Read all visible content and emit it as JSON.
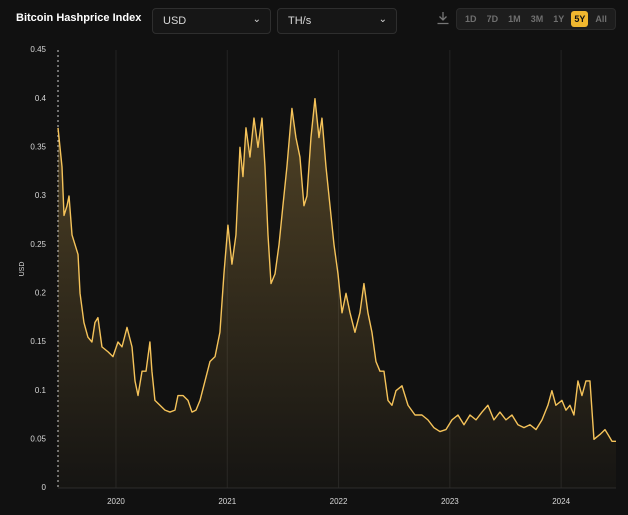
{
  "header": {
    "currency": "USD",
    "unit": "TH/s",
    "ranges": [
      "1D",
      "7D",
      "1M",
      "3M",
      "1Y",
      "5Y",
      "All"
    ],
    "active_range": 5
  },
  "chart_data": {
    "type": "line",
    "title": "Bitcoin Hashprice Index",
    "y_label": "USD",
    "x": [
      2019.479,
      2019.515,
      2019.533,
      2019.56,
      2019.578,
      2019.605,
      2019.632,
      2019.659,
      2019.677,
      2019.712,
      2019.748,
      2019.784,
      2019.811,
      2019.838,
      2019.874,
      2019.928,
      2019.973,
      2020.018,
      2020.054,
      2020.099,
      2020.144,
      2020.171,
      2020.198,
      2020.234,
      2020.27,
      2020.305,
      2020.323,
      2020.35,
      2020.395,
      2020.44,
      2020.485,
      2020.53,
      2020.557,
      2020.602,
      2020.647,
      2020.683,
      2020.719,
      2020.755,
      2020.8,
      2020.845,
      2020.89,
      2020.934,
      2020.97,
      2021.006,
      2021.042,
      2021.078,
      2021.114,
      2021.141,
      2021.168,
      2021.204,
      2021.24,
      2021.276,
      2021.312,
      2021.339,
      2021.366,
      2021.393,
      2021.429,
      2021.465,
      2021.5,
      2021.536,
      2021.581,
      2021.617,
      2021.653,
      2021.689,
      2021.716,
      2021.752,
      2021.788,
      2021.824,
      2021.851,
      2021.887,
      2021.923,
      2021.959,
      2021.995,
      2022.031,
      2022.067,
      2022.103,
      2022.147,
      2022.192,
      2022.228,
      2022.264,
      2022.3,
      2022.336,
      2022.372,
      2022.408,
      2022.444,
      2022.48,
      2022.516,
      2022.57,
      2022.624,
      2022.687,
      2022.749,
      2022.803,
      2022.857,
      2022.911,
      2022.965,
      2023.019,
      2023.073,
      2023.127,
      2023.181,
      2023.235,
      2023.289,
      2023.342,
      2023.396,
      2023.45,
      2023.504,
      2023.558,
      2023.612,
      2023.666,
      2023.72,
      2023.774,
      2023.828,
      2023.881,
      2023.917,
      2023.953,
      2024.007,
      2024.043,
      2024.079,
      2024.115,
      2024.151,
      2024.187,
      2024.223,
      2024.259,
      2024.295,
      2024.349,
      2024.394,
      2024.421,
      2024.457,
      2024.493
    ],
    "series": [
      {
        "name": "Hashprice",
        "color": "#f5c35a",
        "values": [
          0.37,
          0.33,
          0.28,
          0.29,
          0.3,
          0.26,
          0.25,
          0.24,
          0.2,
          0.17,
          0.155,
          0.15,
          0.17,
          0.175,
          0.145,
          0.14,
          0.135,
          0.15,
          0.145,
          0.165,
          0.145,
          0.11,
          0.095,
          0.12,
          0.12,
          0.15,
          0.12,
          0.09,
          0.085,
          0.08,
          0.078,
          0.08,
          0.095,
          0.095,
          0.09,
          0.078,
          0.08,
          0.09,
          0.11,
          0.13,
          0.135,
          0.16,
          0.22,
          0.27,
          0.23,
          0.26,
          0.35,
          0.32,
          0.37,
          0.34,
          0.38,
          0.35,
          0.38,
          0.33,
          0.26,
          0.21,
          0.22,
          0.25,
          0.29,
          0.33,
          0.39,
          0.36,
          0.34,
          0.29,
          0.3,
          0.36,
          0.4,
          0.36,
          0.38,
          0.33,
          0.29,
          0.25,
          0.22,
          0.18,
          0.2,
          0.18,
          0.16,
          0.18,
          0.21,
          0.18,
          0.16,
          0.13,
          0.12,
          0.12,
          0.09,
          0.085,
          0.1,
          0.105,
          0.085,
          0.075,
          0.075,
          0.07,
          0.062,
          0.058,
          0.06,
          0.07,
          0.075,
          0.065,
          0.075,
          0.07,
          0.078,
          0.085,
          0.07,
          0.078,
          0.07,
          0.075,
          0.065,
          0.062,
          0.065,
          0.06,
          0.07,
          0.085,
          0.1,
          0.085,
          0.09,
          0.08,
          0.085,
          0.075,
          0.11,
          0.095,
          0.11,
          0.11,
          0.05,
          0.055,
          0.06,
          0.055,
          0.048,
          0.048
        ]
      }
    ],
    "xlim": [
      2019.479,
      2024.493
    ],
    "xticks": [
      2020,
      2021,
      2022,
      2023,
      2024
    ],
    "ylim": [
      0,
      0.45
    ],
    "yticks": [
      0,
      0.05,
      0.1,
      0.15,
      0.2,
      0.25,
      0.3,
      0.35,
      0.4,
      0.45
    ],
    "grid": "x"
  }
}
